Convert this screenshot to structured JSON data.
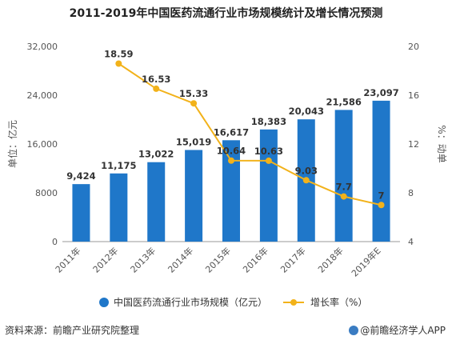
{
  "chart_data": {
    "type": "bar",
    "title": "2011-2019年中国医药流通行业市场规模统计及增长情况预测",
    "categories": [
      "2011年",
      "2012年",
      "2013年",
      "2014年",
      "2015年",
      "2016年",
      "2017年",
      "2018年",
      "2019年E"
    ],
    "series": [
      {
        "name": "中国医药流通行业市场规模（亿元）",
        "type": "bar",
        "axis": "left",
        "color": "#1f77c9",
        "values": [
          9424,
          11175,
          13022,
          15019,
          16617,
          18383,
          20043,
          21586,
          23097
        ],
        "labels": [
          "9,424",
          "11,175",
          "13,022",
          "15,019",
          "16,617",
          "18,383",
          "20,043",
          "21,586",
          "23,097"
        ]
      },
      {
        "name": "增长率（%）",
        "type": "line",
        "axis": "right",
        "color": "#f2b21a",
        "values": [
          null,
          18.59,
          16.53,
          15.33,
          10.64,
          10.63,
          9.03,
          7.7,
          7
        ],
        "labels": [
          "",
          "18.59",
          "16.53",
          "15.33",
          "10.64",
          "10.63",
          "9.03",
          "7.7",
          "7"
        ]
      }
    ],
    "ylabel": "单位：亿元",
    "y2label": "%：动单",
    "ylim": [
      0,
      32000
    ],
    "y2lim": [
      4,
      20
    ],
    "yticks": [
      "0",
      "8000",
      "16,000",
      "24,000",
      "32,000"
    ],
    "y2ticks": [
      "4",
      "8",
      "12",
      "16",
      "20"
    ],
    "grid": false,
    "legend": "bottom"
  },
  "footer": {
    "source": "资料来源：前瞻产业研究院整理",
    "brand": "@前瞻经济学人APP"
  }
}
